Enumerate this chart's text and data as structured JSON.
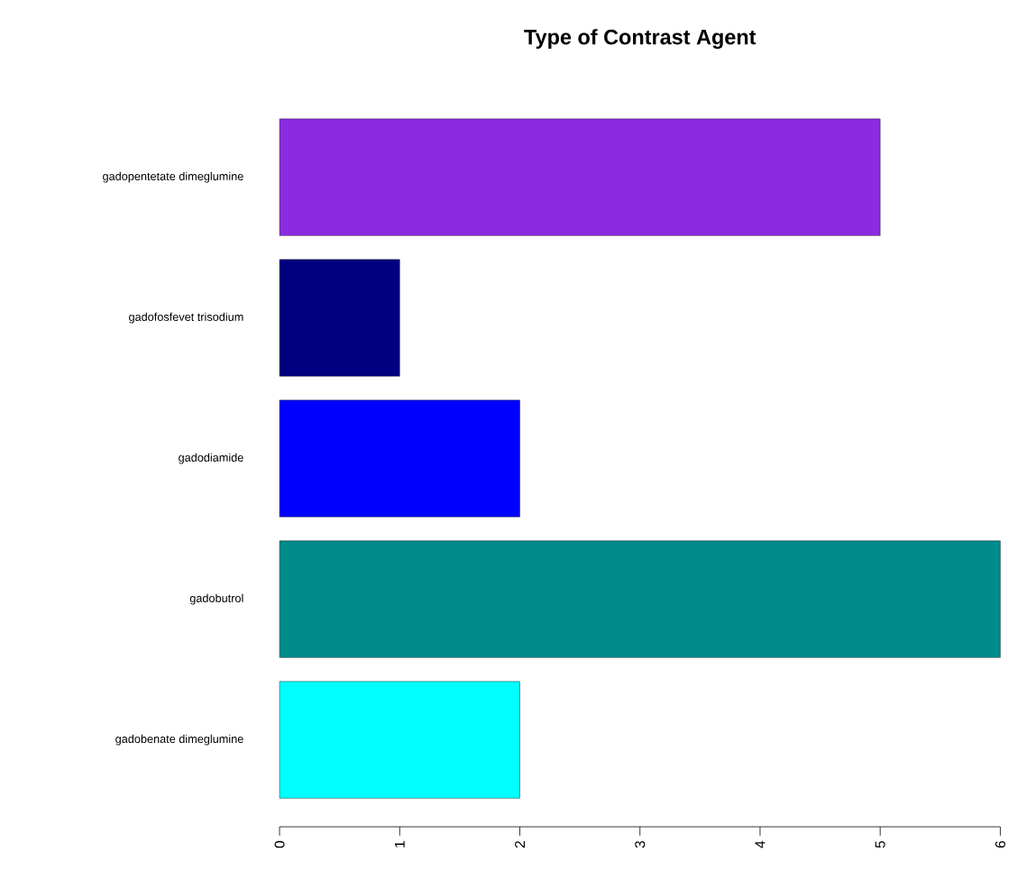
{
  "chart_data": {
    "type": "bar",
    "orientation": "horizontal",
    "title": "Type of Contrast Agent",
    "categories": [
      "gadopentetate dimeglumine",
      "gadofosfevet trisodium",
      "gadodiamide",
      "gadobutrol",
      "gadobenate dimeglumine"
    ],
    "values": [
      5,
      1,
      2,
      6,
      2
    ],
    "colors": [
      "#8a2be2",
      "#000080",
      "#0000ff",
      "#008b8b",
      "#00ffff"
    ],
    "xlim": [
      0,
      6
    ],
    "xticks": [
      0,
      1,
      2,
      3,
      4,
      5,
      6
    ]
  }
}
